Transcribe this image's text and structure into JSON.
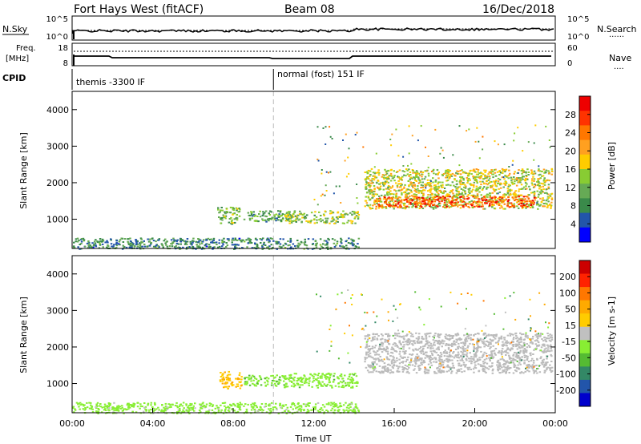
{
  "header": {
    "station": "Fort Hays West (fitACF)",
    "beam": "Beam 08",
    "date": "16/Dec/2018"
  },
  "status_panels": {
    "nsky": {
      "label": "N.Sky",
      "ticks_left": [
        "10^5",
        "10^0"
      ],
      "ticks_right": [
        "10^5",
        "10^0"
      ],
      "right_label": "N.Search",
      "right_legend": "......"
    },
    "freq": {
      "label_line1": "Freq.",
      "label_line2": "[MHz]",
      "ticks_left": [
        "18",
        "8"
      ],
      "ticks_right": [
        "60",
        "0"
      ],
      "right_label": "Nave",
      "right_legend": "...."
    },
    "cpid": {
      "label": "CPID",
      "modes": [
        "themis -3300 IF",
        "normal (fost) 151 IF"
      ],
      "mode_switch_hour": 10.0
    }
  },
  "colors": {
    "power_scale": [
      "#0000ff",
      "#2255aa",
      "#3a8a4a",
      "#66aa55",
      "#88cc33",
      "#ffcc00",
      "#ffa020",
      "#ff7700",
      "#ff3300",
      "#ee0000"
    ],
    "velocity_scale": [
      "#0000cc",
      "#2255aa",
      "#338866",
      "#55bb33",
      "#88ee33",
      "#c0c0c0",
      "#ffcc00",
      "#ffaa00",
      "#ff7700",
      "#ff2200",
      "#cc0000"
    ],
    "ground_scatter": "#bbbbbb"
  },
  "chart_data": [
    {
      "type": "heatmap",
      "name": "power",
      "ylabel": "Slant Range [km]",
      "yticks": [
        "4000",
        "3000",
        "2000",
        "1000"
      ],
      "ylim": [
        200,
        4500
      ],
      "xlim": [
        0,
        24
      ],
      "colorbar_label": "Power [dB]",
      "colorbar_ticks": [
        "28",
        "24",
        "20",
        "16",
        "12",
        "8",
        "4"
      ],
      "clim": [
        0,
        32
      ],
      "regions": [
        {
          "x": [
            7.2,
            8.3
          ],
          "y": [
            880,
            1350
          ],
          "value": 12
        },
        {
          "x": [
            8.5,
            10.5
          ],
          "y": [
            950,
            1250
          ],
          "value": 10
        },
        {
          "x": [
            10.5,
            14.2
          ],
          "y": [
            900,
            1250
          ],
          "value": 14
        },
        {
          "x": [
            14.5,
            23.8
          ],
          "y": [
            1300,
            2400
          ],
          "value": 16
        },
        {
          "x": [
            15.0,
            23.0
          ],
          "y": [
            1350,
            1650
          ],
          "value": 26
        },
        {
          "x": [
            0,
            14.2
          ],
          "y": [
            200,
            500
          ],
          "value": 8
        }
      ]
    },
    {
      "type": "heatmap",
      "name": "velocity",
      "ylabel": "Slant Range [km]",
      "yticks": [
        "4000",
        "3000",
        "2000",
        "1000"
      ],
      "xlabel": "Time UT",
      "xticks": [
        "00:00",
        "04:00",
        "08:00",
        "12:00",
        "16:00",
        "20:00",
        "00:00"
      ],
      "ylim": [
        200,
        4500
      ],
      "xlim": [
        0,
        24
      ],
      "colorbar_label": "Velocity [m s-1]",
      "colorbar_ticks": [
        "200",
        "100",
        "50",
        "15",
        "-15",
        "-50",
        "-100",
        "-200"
      ],
      "clim": [
        -250,
        250
      ],
      "regions": [
        {
          "x": [
            7.3,
            8.4
          ],
          "y": [
            880,
            1350
          ],
          "value": 60
        },
        {
          "x": [
            8.5,
            10.5
          ],
          "y": [
            950,
            1250
          ],
          "value": -60
        },
        {
          "x": [
            10.5,
            14.2
          ],
          "y": [
            900,
            1300
          ],
          "value": -50
        },
        {
          "x": [
            14.5,
            23.8
          ],
          "y": [
            1300,
            2400
          ],
          "value": 0
        },
        {
          "x": [
            0,
            14.2
          ],
          "y": [
            200,
            500
          ],
          "value": -40
        }
      ]
    }
  ]
}
